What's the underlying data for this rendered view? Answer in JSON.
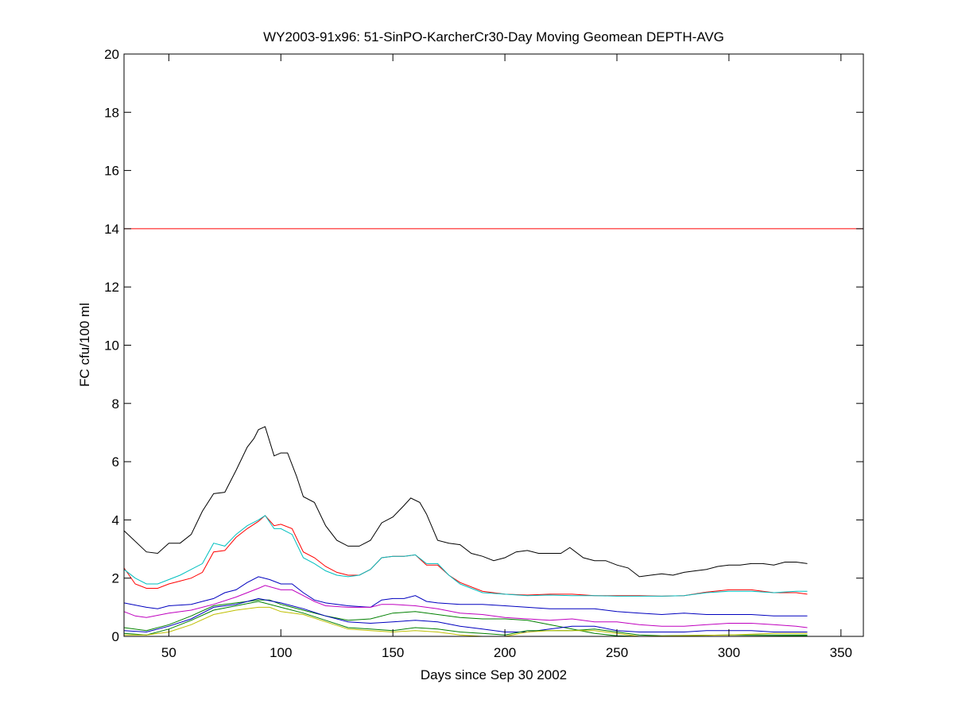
{
  "chart_data": {
    "type": "line",
    "title": "WY2003-91x96: 51-SinPO-KarcherCr30-Day Moving Geomean DEPTH-AVG",
    "xlabel": "Days since Sep 30 2002",
    "ylabel": "FC cfu/100 ml",
    "xlim": [
      30,
      360
    ],
    "ylim": [
      0,
      20
    ],
    "xticks": [
      50,
      100,
      150,
      200,
      250,
      300,
      350
    ],
    "yticks": [
      0,
      2,
      4,
      6,
      8,
      10,
      12,
      14,
      16,
      18,
      20
    ],
    "grid": false,
    "threshold": {
      "value": 14,
      "color": "#ff0000"
    },
    "series": [
      {
        "name": "black",
        "color": "#000000",
        "x": [
          30,
          40,
          45,
          50,
          55,
          60,
          65,
          70,
          75,
          80,
          85,
          88,
          90,
          93,
          97,
          100,
          103,
          107,
          110,
          115,
          120,
          125,
          130,
          135,
          140,
          145,
          150,
          155,
          158,
          162,
          165,
          170,
          175,
          180,
          185,
          190,
          195,
          200,
          205,
          210,
          215,
          220,
          225,
          229,
          235,
          240,
          245,
          250,
          255,
          260,
          265,
          270,
          275,
          280,
          285,
          290,
          295,
          300,
          305,
          310,
          315,
          320,
          325,
          330,
          335
        ],
        "y": [
          3.63,
          2.9,
          2.85,
          3.2,
          3.2,
          3.5,
          4.3,
          4.9,
          4.95,
          5.7,
          6.5,
          6.8,
          7.1,
          7.2,
          6.2,
          6.3,
          6.3,
          5.5,
          4.8,
          4.6,
          3.8,
          3.3,
          3.1,
          3.1,
          3.3,
          3.9,
          4.1,
          4.5,
          4.75,
          4.6,
          4.2,
          3.3,
          3.2,
          3.15,
          2.85,
          2.75,
          2.6,
          2.7,
          2.9,
          2.95,
          2.85,
          2.85,
          2.85,
          3.05,
          2.7,
          2.6,
          2.6,
          2.45,
          2.35,
          2.05,
          2.1,
          2.15,
          2.1,
          2.2,
          2.25,
          2.3,
          2.4,
          2.45,
          2.45,
          2.5,
          2.5,
          2.45,
          2.55,
          2.55,
          2.5
        ]
      },
      {
        "name": "red",
        "color": "#ff0000",
        "x": [
          30,
          35,
          40,
          45,
          50,
          55,
          60,
          65,
          70,
          75,
          80,
          85,
          90,
          93,
          97,
          100,
          105,
          110,
          115,
          120,
          125,
          130,
          135,
          140,
          145,
          150,
          155,
          160,
          165,
          170,
          175,
          180,
          190,
          200,
          210,
          220,
          230,
          240,
          250,
          260,
          270,
          280,
          290,
          300,
          310,
          320,
          330,
          335
        ],
        "y": [
          2.35,
          1.8,
          1.65,
          1.65,
          1.8,
          1.9,
          2.0,
          2.2,
          2.9,
          2.95,
          3.4,
          3.7,
          3.95,
          4.15,
          3.8,
          3.85,
          3.7,
          2.9,
          2.7,
          2.4,
          2.2,
          2.1,
          2.1,
          2.3,
          2.7,
          2.75,
          2.75,
          2.8,
          2.45,
          2.45,
          2.1,
          1.85,
          1.55,
          1.45,
          1.42,
          1.45,
          1.45,
          1.4,
          1.4,
          1.4,
          1.38,
          1.4,
          1.52,
          1.6,
          1.6,
          1.5,
          1.5,
          1.45
        ]
      },
      {
        "name": "cyan",
        "color": "#00bfbf",
        "x": [
          30,
          35,
          40,
          45,
          50,
          55,
          60,
          65,
          70,
          75,
          80,
          85,
          90,
          93,
          97,
          100,
          105,
          110,
          115,
          120,
          125,
          130,
          135,
          140,
          145,
          150,
          155,
          160,
          165,
          170,
          175,
          180,
          185,
          190,
          200,
          210,
          220,
          230,
          240,
          250,
          260,
          270,
          280,
          290,
          300,
          310,
          320,
          330,
          335
        ],
        "y": [
          2.3,
          2.0,
          1.8,
          1.8,
          1.95,
          2.1,
          2.3,
          2.5,
          3.2,
          3.1,
          3.5,
          3.8,
          4.0,
          4.15,
          3.7,
          3.7,
          3.5,
          2.7,
          2.5,
          2.25,
          2.1,
          2.05,
          2.1,
          2.3,
          2.7,
          2.75,
          2.75,
          2.8,
          2.5,
          2.5,
          2.1,
          1.8,
          1.65,
          1.5,
          1.45,
          1.4,
          1.42,
          1.4,
          1.4,
          1.38,
          1.38,
          1.38,
          1.4,
          1.5,
          1.55,
          1.55,
          1.5,
          1.55,
          1.55
        ]
      },
      {
        "name": "blue",
        "color": "#0000bf",
        "x": [
          30,
          40,
          45,
          50,
          60,
          65,
          70,
          75,
          80,
          85,
          90,
          95,
          100,
          105,
          110,
          115,
          120,
          130,
          140,
          145,
          150,
          155,
          160,
          165,
          170,
          180,
          190,
          200,
          210,
          220,
          230,
          240,
          250,
          260,
          270,
          280,
          290,
          300,
          310,
          320,
          330,
          335
        ],
        "y": [
          1.15,
          1.0,
          0.95,
          1.05,
          1.1,
          1.2,
          1.3,
          1.5,
          1.6,
          1.85,
          2.05,
          1.95,
          1.8,
          1.8,
          1.5,
          1.25,
          1.15,
          1.05,
          1.0,
          1.25,
          1.3,
          1.3,
          1.4,
          1.2,
          1.15,
          1.1,
          1.1,
          1.05,
          1.0,
          0.95,
          0.95,
          0.95,
          0.85,
          0.8,
          0.75,
          0.8,
          0.75,
          0.75,
          0.75,
          0.7,
          0.7,
          0.7
        ]
      },
      {
        "name": "magenta",
        "color": "#bf00bf",
        "x": [
          30,
          35,
          40,
          50,
          60,
          70,
          80,
          90,
          93,
          100,
          105,
          110,
          115,
          120,
          130,
          140,
          145,
          150,
          160,
          170,
          180,
          190,
          200,
          210,
          220,
          230,
          240,
          250,
          260,
          270,
          280,
          290,
          300,
          310,
          320,
          330,
          335
        ],
        "y": [
          0.85,
          0.7,
          0.65,
          0.8,
          0.9,
          1.1,
          1.35,
          1.65,
          1.75,
          1.6,
          1.6,
          1.4,
          1.2,
          1.05,
          1.0,
          1.0,
          1.1,
          1.1,
          1.05,
          0.95,
          0.8,
          0.75,
          0.65,
          0.6,
          0.55,
          0.6,
          0.5,
          0.5,
          0.4,
          0.35,
          0.35,
          0.4,
          0.45,
          0.45,
          0.4,
          0.35,
          0.3
        ]
      },
      {
        "name": "dark-green",
        "color": "#007f00",
        "x": [
          30,
          40,
          50,
          60,
          70,
          80,
          90,
          95,
          100,
          110,
          120,
          130,
          140,
          150,
          160,
          170,
          180,
          190,
          200,
          210,
          220,
          230,
          240,
          250,
          260,
          300,
          335
        ],
        "y": [
          0.3,
          0.2,
          0.4,
          0.7,
          1.05,
          1.15,
          1.25,
          1.25,
          1.1,
          0.9,
          0.7,
          0.55,
          0.6,
          0.8,
          0.85,
          0.75,
          0.65,
          0.6,
          0.6,
          0.55,
          0.4,
          0.25,
          0.1,
          0.02,
          0,
          0,
          0.02
        ]
      },
      {
        "name": "blue-2",
        "color": "#0000bf",
        "x": [
          30,
          40,
          50,
          60,
          70,
          80,
          90,
          100,
          110,
          120,
          130,
          140,
          150,
          160,
          170,
          180,
          190,
          200,
          210,
          220,
          230,
          240,
          250,
          260,
          270,
          280,
          290,
          300,
          310,
          320,
          330,
          335
        ],
        "y": [
          0.2,
          0.15,
          0.35,
          0.6,
          1.0,
          1.1,
          1.3,
          1.15,
          0.95,
          0.7,
          0.5,
          0.45,
          0.5,
          0.55,
          0.5,
          0.35,
          0.25,
          0.15,
          0.15,
          0.25,
          0.35,
          0.35,
          0.2,
          0.15,
          0.15,
          0.15,
          0.2,
          0.2,
          0.2,
          0.15,
          0.15,
          0.15
        ]
      },
      {
        "name": "green",
        "color": "#008000",
        "x": [
          30,
          40,
          50,
          60,
          70,
          80,
          90,
          100,
          110,
          120,
          130,
          140,
          150,
          160,
          170,
          180,
          190,
          200,
          210,
          220,
          230,
          240,
          250,
          260,
          270,
          300,
          320,
          335
        ],
        "y": [
          0.1,
          0.05,
          0.25,
          0.55,
          0.9,
          1.05,
          1.2,
          1.0,
          0.8,
          0.55,
          0.3,
          0.25,
          0.2,
          0.3,
          0.25,
          0.15,
          0.1,
          0.05,
          0.2,
          0.2,
          0.2,
          0.25,
          0.15,
          0.05,
          0.02,
          0.05,
          0.05,
          0.05
        ]
      },
      {
        "name": "yellow",
        "color": "#bfbf00",
        "x": [
          30,
          40,
          50,
          60,
          70,
          80,
          90,
          95,
          100,
          110,
          120,
          130,
          140,
          150,
          160,
          170,
          180,
          190,
          200,
          210,
          220,
          230,
          240,
          250,
          260,
          300,
          320,
          335
        ],
        "y": [
          0.05,
          0.05,
          0.15,
          0.4,
          0.75,
          0.9,
          1.0,
          1.0,
          0.85,
          0.75,
          0.5,
          0.25,
          0.2,
          0.15,
          0.2,
          0.15,
          0.05,
          0,
          0,
          0.15,
          0.2,
          0.2,
          0.2,
          0.1,
          0,
          0.05,
          0.1,
          0.1
        ]
      }
    ]
  }
}
